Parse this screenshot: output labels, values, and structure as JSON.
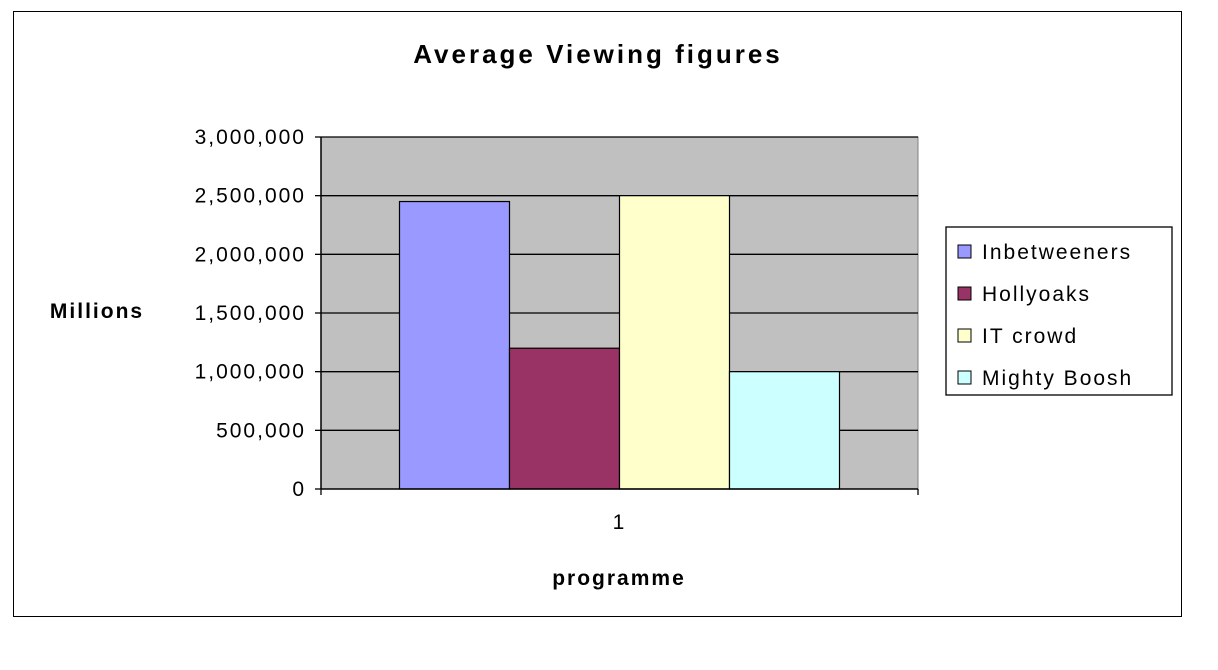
{
  "chart_data": {
    "type": "bar",
    "title": "Average Viewing figures",
    "xlabel": "programme",
    "ylabel": "Millions",
    "categories": [
      "1"
    ],
    "ylim": [
      0,
      3000000
    ],
    "yticks": [
      0,
      500000,
      1000000,
      1500000,
      2000000,
      2500000,
      3000000
    ],
    "ytick_labels": [
      "0",
      "500,000",
      "1,000,000",
      "1,500,000",
      "2,000,000",
      "2,500,000",
      "3,000,000"
    ],
    "grid": true,
    "legend_position": "right",
    "plot_background": "#C0C0C0",
    "series": [
      {
        "name": "Inbetweeners",
        "values": [
          2450000
        ],
        "color": "#9999FF"
      },
      {
        "name": "Hollyoaks",
        "values": [
          1200000
        ],
        "color": "#993366"
      },
      {
        "name": "IT crowd",
        "values": [
          2500000
        ],
        "color": "#FFFFCC"
      },
      {
        "name": "Mighty Boosh",
        "values": [
          1000000
        ],
        "color": "#CCFFFF"
      }
    ]
  }
}
